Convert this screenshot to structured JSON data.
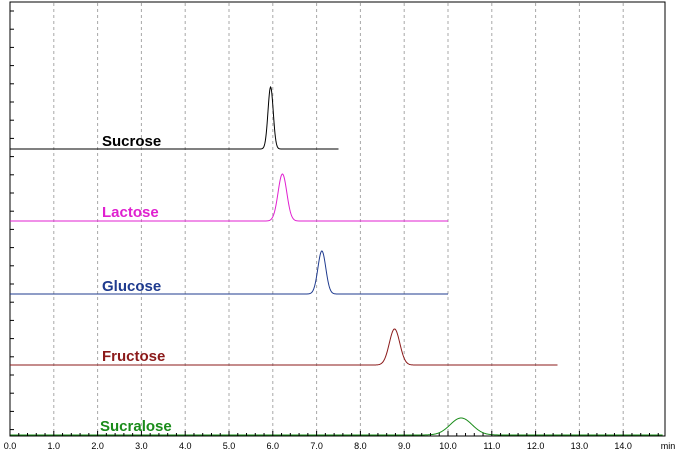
{
  "chart_data": {
    "type": "line",
    "title": "",
    "xlabel": "",
    "ylabel": "",
    "x_unit": "min",
    "xlim": [
      0.0,
      14.9
    ],
    "x_ticks": [
      "0.0",
      "1.0",
      "2.0",
      "3.0",
      "4.0",
      "5.0",
      "6.0",
      "7.0",
      "8.0",
      "9.0",
      "10.0",
      "11.0",
      "12.0",
      "13.0",
      "14.0"
    ],
    "grid": "vertical dashed",
    "legend": "none",
    "series": [
      {
        "name": "Sucrose",
        "color": "#000000",
        "x_end": 7.5,
        "peak_x": 5.95,
        "peak_height": 62,
        "peak_width": 0.06
      },
      {
        "name": "Lactose",
        "color": "#e020d0",
        "x_end": 10.0,
        "peak_x": 6.22,
        "peak_height": 47,
        "peak_width": 0.1
      },
      {
        "name": "Glucose",
        "color": "#1f3b8f",
        "x_end": 10.0,
        "peak_x": 7.12,
        "peak_height": 43,
        "peak_width": 0.09
      },
      {
        "name": "Fructose",
        "color": "#8b1a1a",
        "x_end": 12.5,
        "peak_x": 8.78,
        "peak_height": 36,
        "peak_width": 0.12
      },
      {
        "name": "Sucralose",
        "color": "#1a8c1a",
        "x_end": 14.9,
        "peak_x": 10.3,
        "peak_height": 17,
        "peak_width": 0.25
      }
    ]
  }
}
